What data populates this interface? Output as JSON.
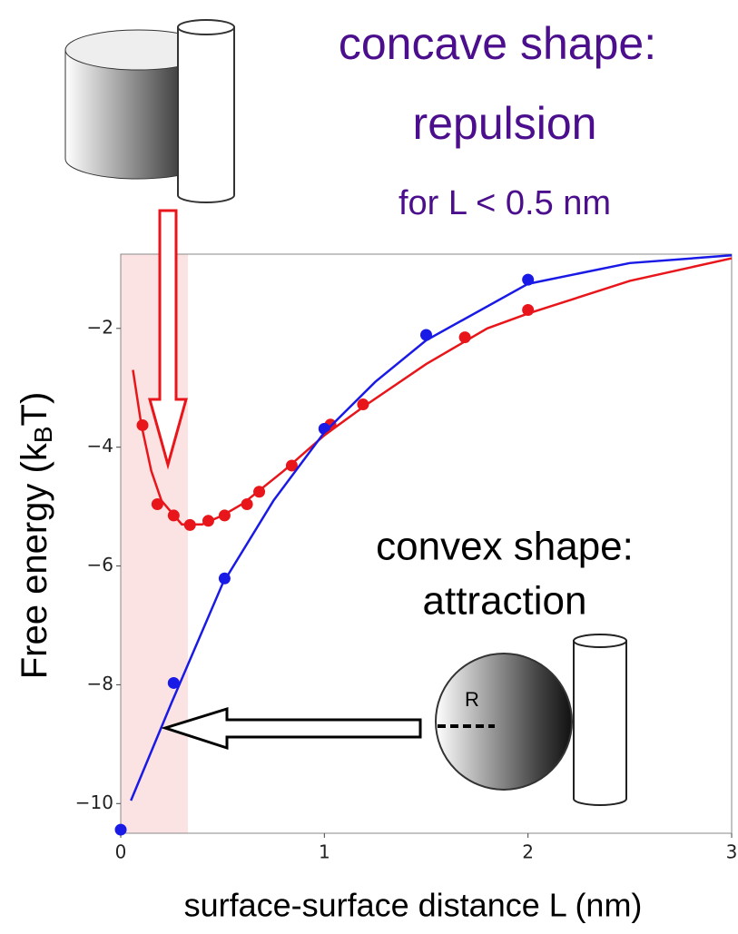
{
  "chart_data": {
    "type": "scatter",
    "annotations": {
      "concave_title": "concave shape:",
      "concave_effect": "repulsion",
      "concave_range": "for L < 0.5 nm",
      "convex_title": "convex shape:",
      "convex_effect": "attraction",
      "radius_label": "R"
    },
    "xlabel": "surface-surface distance L (nm)",
    "ylabel": {
      "text": "Free energy (k",
      "sub": "B",
      "tail": "T)"
    },
    "xlim": [
      0,
      3
    ],
    "ylim": [
      -10.5,
      -0.75
    ],
    "xticks": [
      0,
      1,
      2,
      3
    ],
    "yticks": [
      {
        "value": -2,
        "label": "−2"
      },
      {
        "value": -4,
        "label": "−4"
      },
      {
        "value": -6,
        "label": "−6"
      },
      {
        "value": -8,
        "label": "−8"
      },
      {
        "value": -10,
        "label": "−10"
      }
    ],
    "shaded_span": {
      "x": [
        0,
        0.33
      ],
      "color": "#fbe3e3"
    },
    "series": [
      {
        "color": "#e8161b",
        "style": "points",
        "x": [
          0.107,
          0.18,
          0.26,
          0.34,
          0.43,
          0.51,
          0.62,
          0.68,
          0.84,
          1.03,
          1.19,
          1.69,
          2.0
        ],
        "values": [
          -3.63,
          -4.96,
          -5.15,
          -5.31,
          -5.24,
          -5.15,
          -4.96,
          -4.75,
          -4.31,
          -3.62,
          -3.28,
          -2.15,
          -1.69
        ]
      },
      {
        "color": "#1a1ae6",
        "style": "points",
        "x": [
          0,
          0.26,
          0.51,
          1.0,
          1.5,
          2.0
        ],
        "values": [
          -10.44,
          -7.97,
          -6.21,
          -3.69,
          -2.11,
          -1.18
        ]
      },
      {
        "color": "#e8161b",
        "style": "line",
        "x": [
          0.06,
          0.1,
          0.15,
          0.2,
          0.3,
          0.4,
          0.5,
          0.6,
          0.8,
          1.0,
          1.2,
          1.5,
          1.8,
          2.0,
          2.5,
          3.0
        ],
        "values": [
          -2.7,
          -3.6,
          -4.4,
          -4.9,
          -5.3,
          -5.3,
          -5.15,
          -4.95,
          -4.4,
          -3.8,
          -3.3,
          -2.6,
          -2.0,
          -1.75,
          -1.2,
          -0.82
        ]
      },
      {
        "color": "#1a1ae6",
        "style": "line",
        "x": [
          0.05,
          0.25,
          0.5,
          0.75,
          1.0,
          1.25,
          1.5,
          2.0,
          2.5,
          3.0
        ],
        "values": [
          -9.95,
          -8.3,
          -6.3,
          -4.9,
          -3.75,
          -2.9,
          -2.2,
          -1.25,
          -0.9,
          -0.77
        ]
      }
    ]
  }
}
